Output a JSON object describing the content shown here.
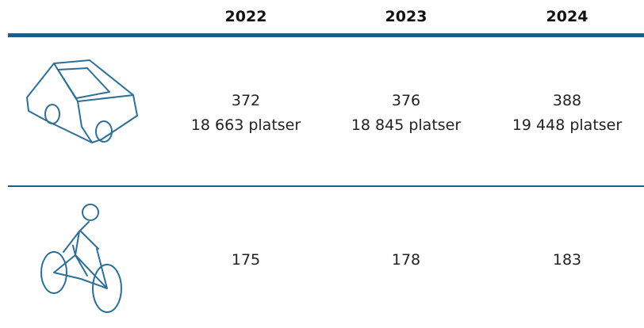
{
  "table": {
    "header": [
      "2022",
      "2023",
      "2024"
    ],
    "rows": [
      [
        [
          "372",
          "18 663 platser"
        ],
        [
          "376",
          "18 845 platser"
        ],
        [
          "388",
          "19 448 platser"
        ]
      ],
      [
        [
          "175"
        ],
        [
          "178"
        ],
        [
          "183"
        ]
      ]
    ]
  }
}
